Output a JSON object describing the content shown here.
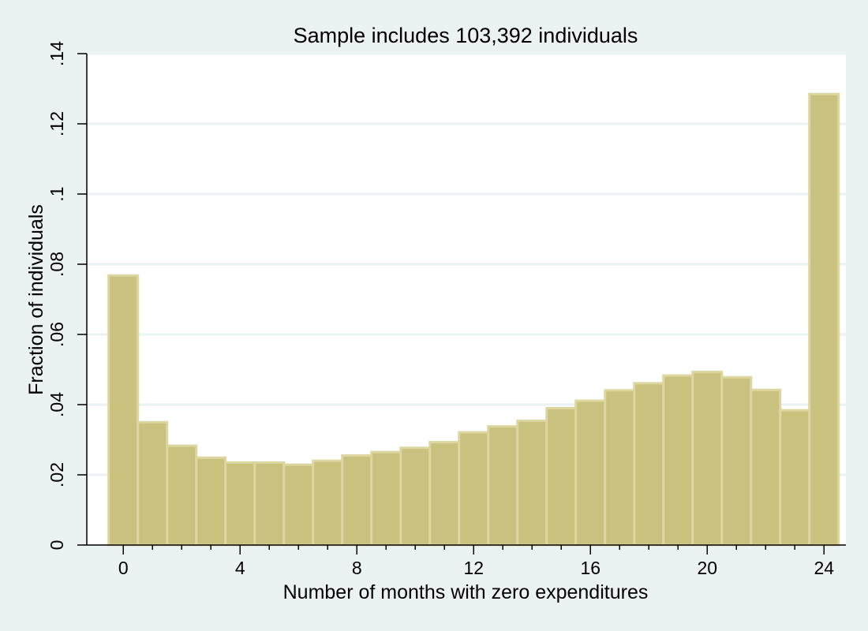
{
  "chart_data": {
    "type": "bar",
    "title": "Sample includes 103,392 individuals",
    "xlabel": "Number of months with zero expenditures",
    "ylabel": "Fraction of individuals",
    "x": [
      0,
      1,
      2,
      3,
      4,
      5,
      6,
      7,
      8,
      9,
      10,
      11,
      12,
      13,
      14,
      15,
      16,
      17,
      18,
      19,
      20,
      21,
      22,
      23,
      24
    ],
    "values": [
      0.0768,
      0.035,
      0.0283,
      0.0249,
      0.0235,
      0.0235,
      0.0229,
      0.024,
      0.0255,
      0.0265,
      0.0277,
      0.0293,
      0.0321,
      0.0338,
      0.0354,
      0.039,
      0.0411,
      0.0441,
      0.0461,
      0.0483,
      0.0493,
      0.0478,
      0.0442,
      0.0384,
      0.1285
    ],
    "xlim": [
      -1.25,
      24.75
    ],
    "ylim": [
      0,
      0.14
    ],
    "x_ticks": [
      {
        "value": 0,
        "label": "0"
      },
      {
        "value": 4,
        "label": "4"
      },
      {
        "value": 8,
        "label": "8"
      },
      {
        "value": 12,
        "label": "12"
      },
      {
        "value": 16,
        "label": "16"
      },
      {
        "value": 20,
        "label": "20"
      },
      {
        "value": 24,
        "label": "24"
      }
    ],
    "y_ticks": [
      {
        "value": 0,
        "label": "0"
      },
      {
        "value": 0.02,
        "label": ".02"
      },
      {
        "value": 0.04,
        "label": ".04"
      },
      {
        "value": 0.06,
        "label": ".06"
      },
      {
        "value": 0.08,
        "label": ".08"
      },
      {
        "value": 0.1,
        "label": ".1"
      },
      {
        "value": 0.12,
        "label": ".12"
      },
      {
        "value": 0.14,
        "label": ".14"
      }
    ],
    "grid": true,
    "colors": {
      "background": "#eaf2f3",
      "plot_background": "#ffffff",
      "bar_fill": "#c9c27f",
      "bar_outline": "#ddd6a0",
      "gridline": "#eaf2f3"
    }
  }
}
